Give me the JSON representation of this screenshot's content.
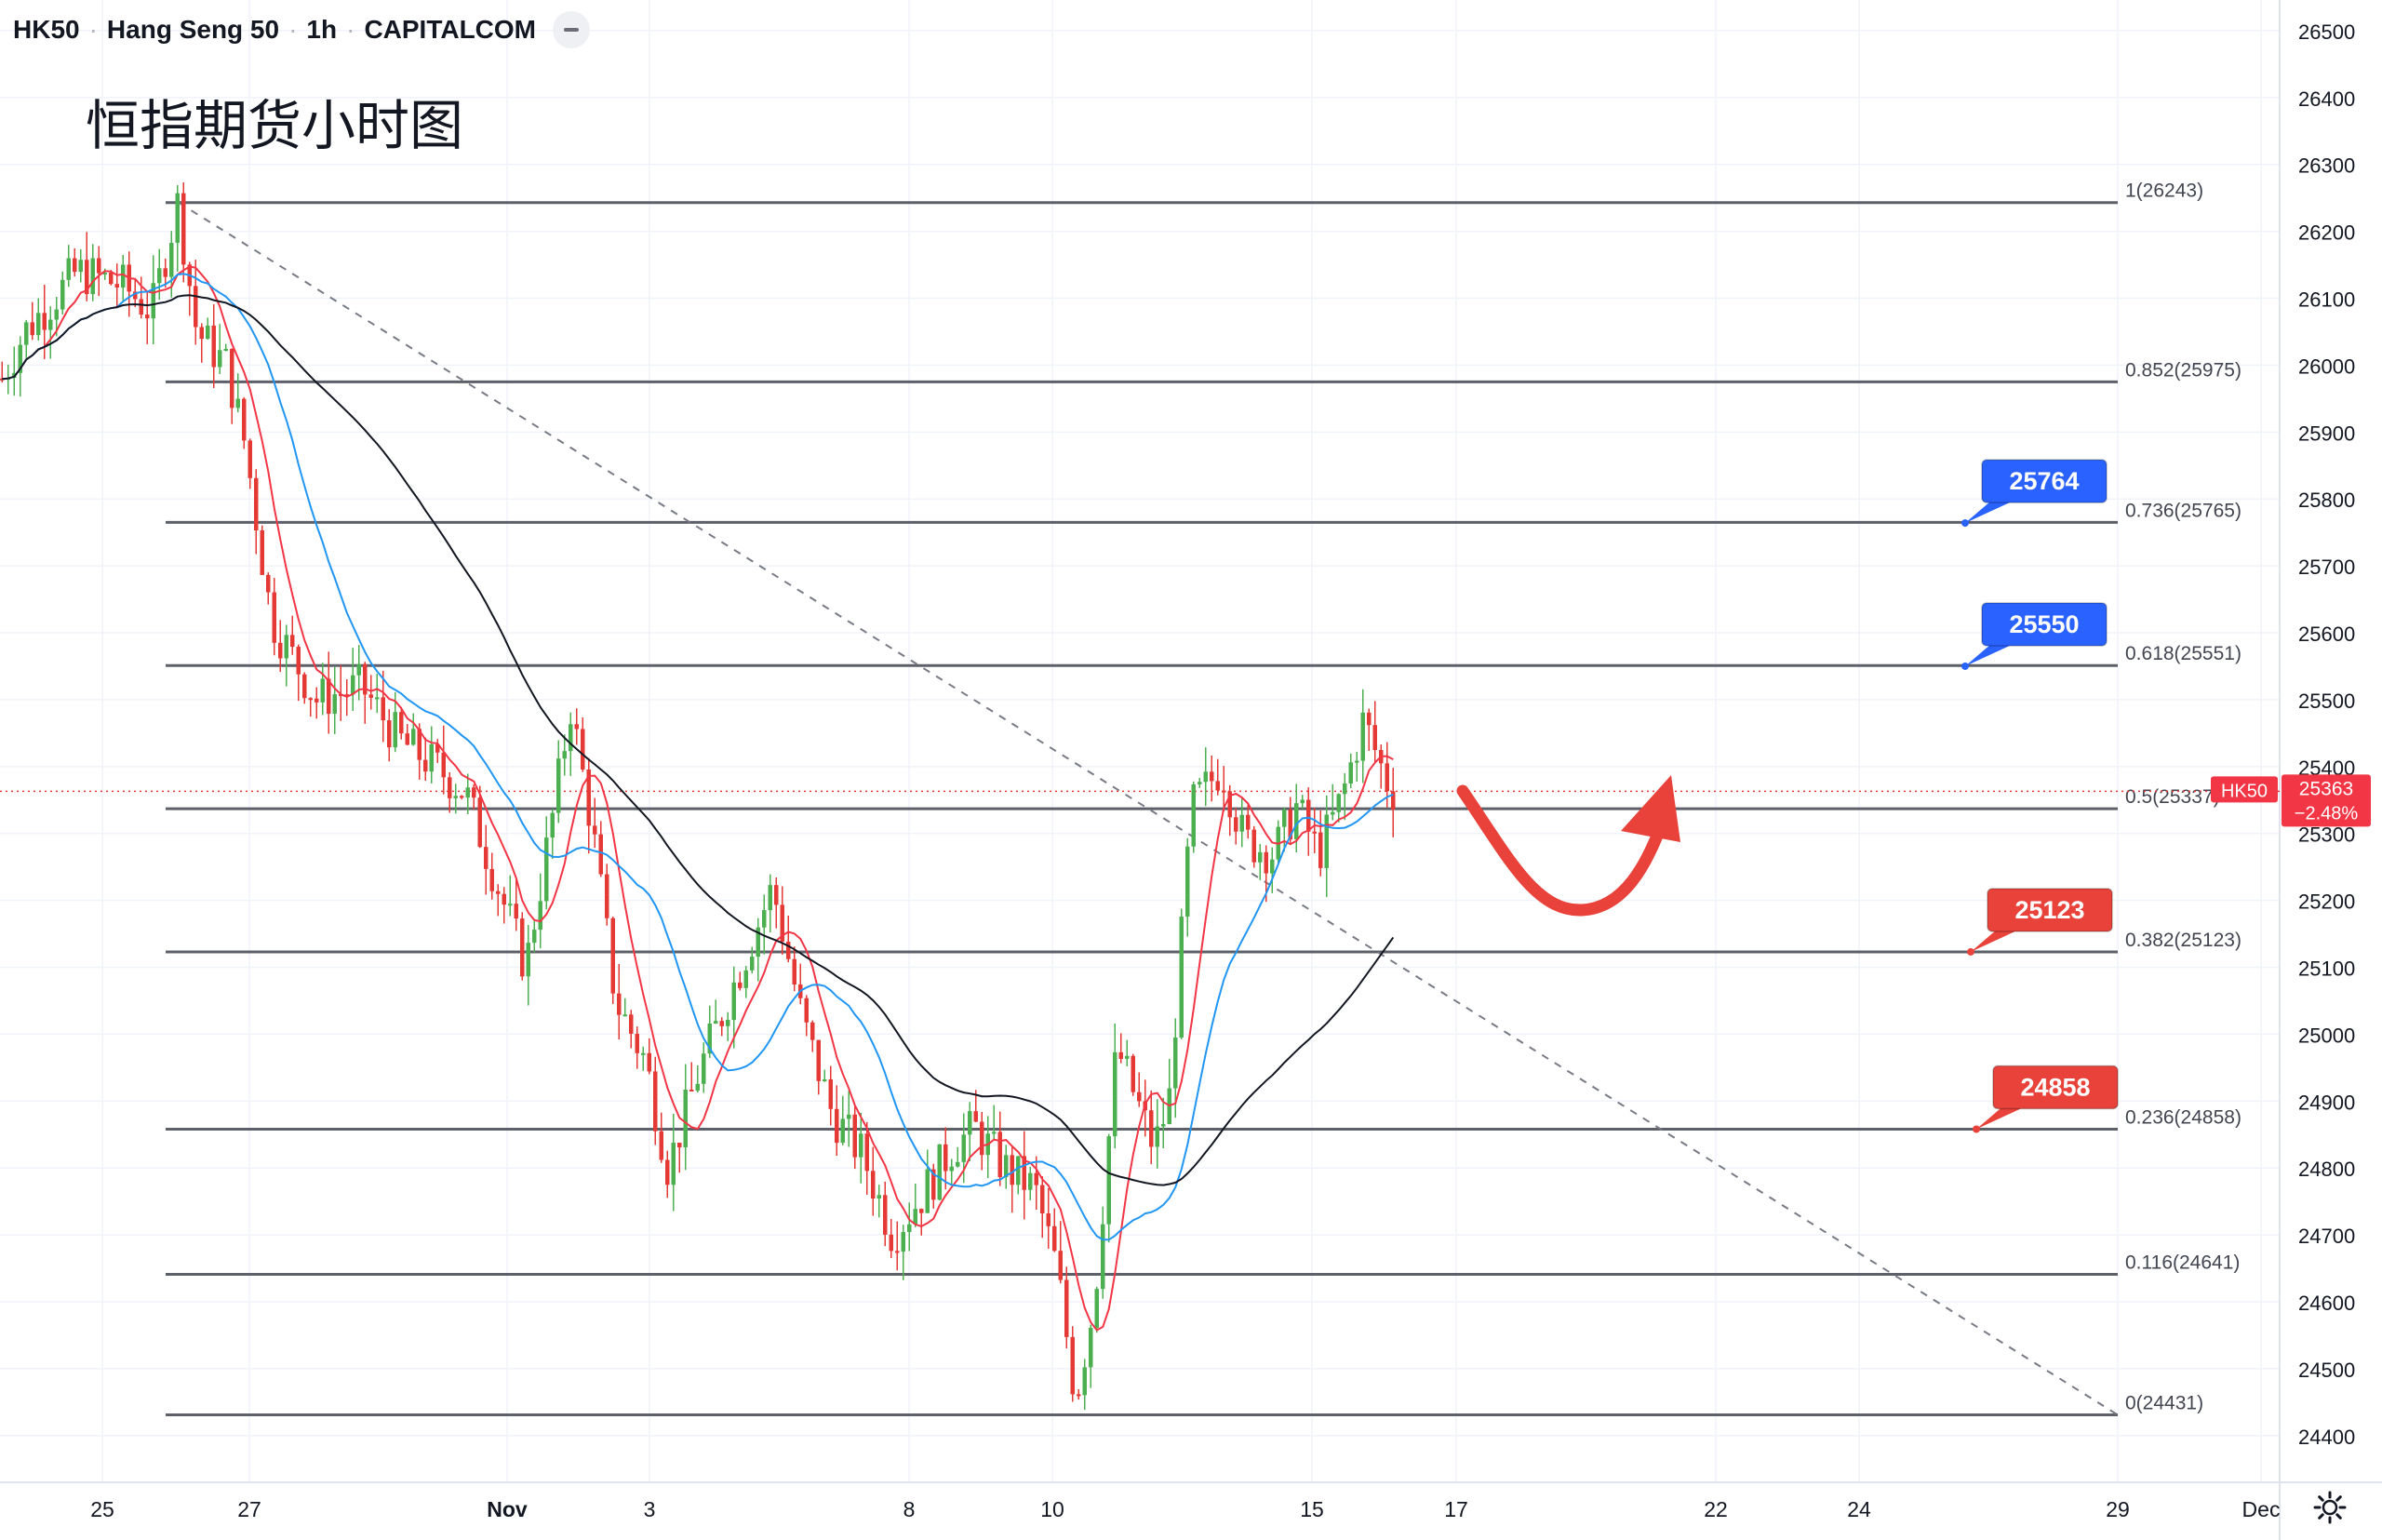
{
  "header": {
    "symbol": "HK50",
    "name": "Hang Seng 50",
    "interval": "1h",
    "exchange": "CAPITALCOM"
  },
  "annotation_title": "恒指期货小时图",
  "price_tag": {
    "symbol": "HK50",
    "price": "25363",
    "change": "−2.48%",
    "color": "#f23645"
  },
  "callouts": [
    {
      "label": "25764",
      "price": 25764,
      "color": "#2962ff"
    },
    {
      "label": "25550",
      "price": 25550,
      "color": "#2962ff"
    },
    {
      "label": "25123",
      "price": 25123,
      "color": "#e8423a"
    },
    {
      "label": "24858",
      "price": 24858,
      "color": "#e8423a"
    }
  ],
  "fib_levels": [
    {
      "label": "1(26243)",
      "price": 26243
    },
    {
      "label": "0.852(25975)",
      "price": 25975
    },
    {
      "label": "0.736(25765)",
      "price": 25765
    },
    {
      "label": "0.618(25551)",
      "price": 25551
    },
    {
      "label": "0.5(25337)",
      "price": 25337
    },
    {
      "label": "0.382(25123)",
      "price": 25123
    },
    {
      "label": "0.236(24858)",
      "price": 24858
    },
    {
      "label": "0.116(24641)",
      "price": 24641
    },
    {
      "label": "0(24431)",
      "price": 24431
    }
  ],
  "colors": {
    "candle_up": "#4caf50",
    "candle_down": "#e53935",
    "ma_fast": "#f23645",
    "ma_mid": "#2196f3",
    "ma_slow": "#131722",
    "fib_line": "#5d6069",
    "arrow": "#e8423a",
    "grid": "#f0f3fa"
  },
  "chart_data": {
    "type": "candlestick",
    "ylim": [
      24400,
      26540
    ],
    "y_ticks": [
      24400,
      24500,
      24600,
      24700,
      24800,
      24900,
      25000,
      25100,
      25200,
      25300,
      25400,
      25500,
      25600,
      25700,
      25800,
      25900,
      26000,
      26100,
      26200,
      26300,
      26400,
      26500
    ],
    "x_ticks": [
      "25",
      "27",
      "Nov",
      "3",
      "8",
      "10",
      "15",
      "17",
      "22",
      "24",
      "29",
      "Dec"
    ],
    "last_price": 25363,
    "price_path": [
      [
        0,
        25980
      ],
      [
        0.3,
        26050
      ],
      [
        1.0,
        26140
      ],
      [
        1.6,
        26120
      ],
      [
        2.0,
        26080
      ],
      [
        2.35,
        26243
      ],
      [
        2.6,
        26050
      ],
      [
        3.0,
        26000
      ],
      [
        3.25,
        25880
      ],
      [
        3.6,
        25620
      ],
      [
        4.2,
        25500
      ],
      [
        4.8,
        25520
      ],
      [
        5.3,
        25440
      ],
      [
        5.8,
        25400
      ],
      [
        6.2,
        25360
      ],
      [
        6.6,
        25230
      ],
      [
        7.0,
        25100
      ],
      [
        7.35,
        25320
      ],
      [
        7.6,
        25490
      ],
      [
        7.9,
        25300
      ],
      [
        8.2,
        25050
      ],
      [
        8.6,
        24960
      ],
      [
        8.9,
        24800
      ],
      [
        9.3,
        24940
      ],
      [
        9.8,
        25080
      ],
      [
        10.3,
        25220
      ],
      [
        10.7,
        25020
      ],
      [
        11.1,
        24880
      ],
      [
        11.5,
        24820
      ],
      [
        11.9,
        24700
      ],
      [
        12.3,
        24760
      ],
      [
        12.7,
        24830
      ],
      [
        13.0,
        24860
      ],
      [
        13.4,
        24800
      ],
      [
        13.8,
        24770
      ],
      [
        14.1,
        24650
      ],
      [
        14.35,
        24455
      ],
      [
        14.6,
        24600
      ],
      [
        14.9,
        24980
      ],
      [
        15.4,
        24830
      ],
      [
        15.6,
        24900
      ],
      [
        15.9,
        25340
      ],
      [
        16.3,
        25400
      ],
      [
        16.6,
        25290
      ],
      [
        17.0,
        25270
      ],
      [
        17.3,
        25340
      ],
      [
        17.6,
        25270
      ],
      [
        17.9,
        25350
      ],
      [
        18.2,
        25470
      ],
      [
        18.5,
        25380
      ],
      [
        18.6,
        25363
      ]
    ],
    "x_day_index": {
      "25": 0,
      "27": 2,
      "Nov": 5.5,
      "3": 7,
      "8": 10,
      "10": 12,
      "15": 15,
      "17": 17,
      "22": 20,
      "24": 22,
      "29": 25,
      "Dec": 27
    },
    "fib_anchor": {
      "high": 26243,
      "low": 24431
    },
    "moving_averages": [
      "fast",
      "mid",
      "slow"
    ],
    "projection": "decline toward 25337 then rebound above 25400"
  }
}
